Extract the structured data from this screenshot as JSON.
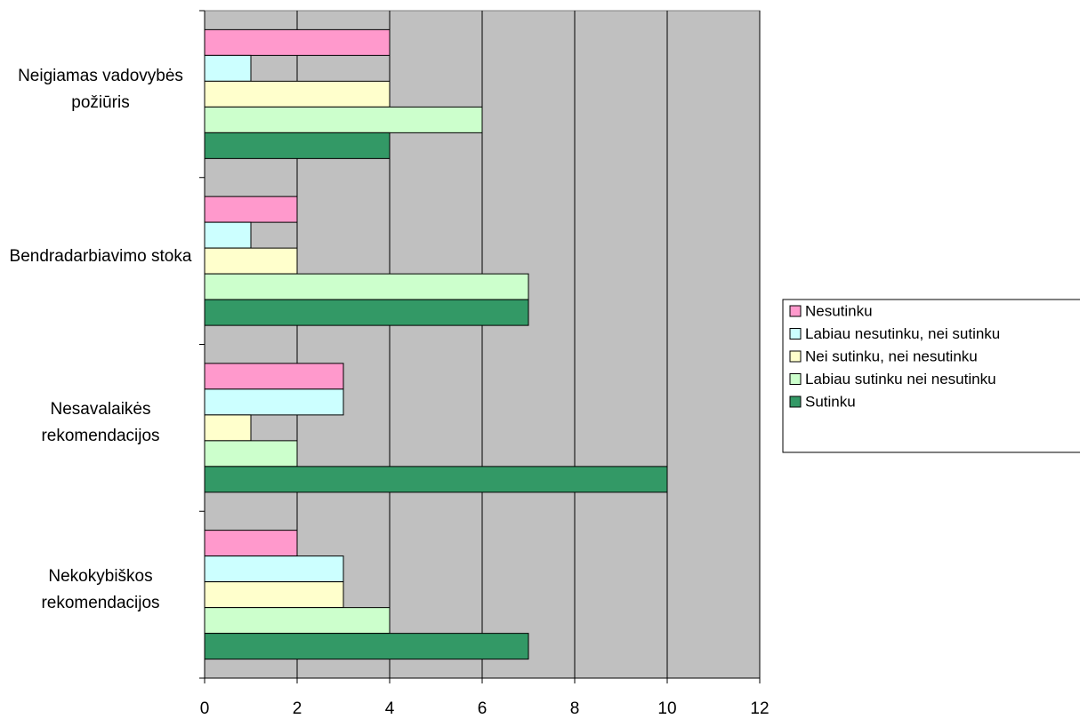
{
  "chart_data": {
    "type": "barh",
    "categories": [
      "Neigiamas vadovybės požiūris",
      "Bendradarbiavimo stoka",
      "Nesavalaikės rekomendacijos",
      "Nekokybiškos rekomendacijos"
    ],
    "series": [
      {
        "name": "Nesutinku",
        "color": "#ff99cc",
        "values": [
          4,
          2,
          3,
          2
        ]
      },
      {
        "name": "Labiau nesutinku, nei sutinku",
        "color": "#ccffff",
        "values": [
          1,
          1,
          3,
          3
        ]
      },
      {
        "name": "Nei sutinku, nei nesutinku",
        "color": "#ffffcc",
        "values": [
          4,
          2,
          1,
          3
        ]
      },
      {
        "name": "Labiau sutinku nei nesutinku",
        "color": "#ccffcc",
        "values": [
          6,
          7,
          2,
          4
        ]
      },
      {
        "name": "Sutinku",
        "color": "#339966",
        "values": [
          4,
          7,
          10,
          7
        ]
      }
    ],
    "xlim": [
      0,
      12
    ],
    "xticks": [
      0,
      2,
      4,
      6,
      8,
      10,
      12
    ],
    "grid": true,
    "legend": "right"
  }
}
